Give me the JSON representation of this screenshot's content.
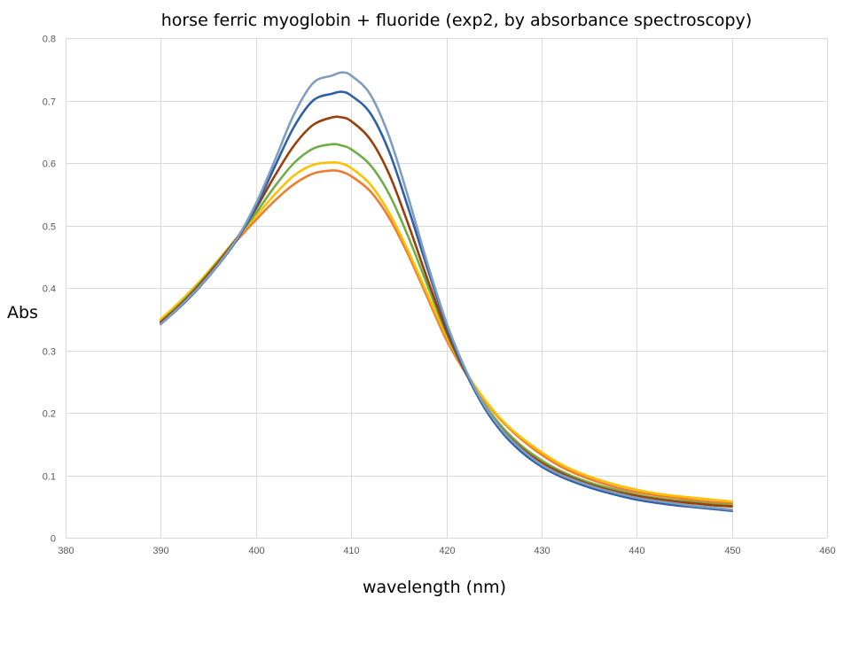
{
  "chart_data": {
    "type": "line",
    "title": "horse ferric myoglobin + fluoride (exp2, by absorbance spectroscopy)",
    "xlabel": "wavelength (nm)",
    "ylabel": "Abs",
    "xlim": [
      380,
      460
    ],
    "ylim": [
      0,
      0.8
    ],
    "x_ticks": [
      "380",
      "390",
      "400",
      "410",
      "420",
      "430",
      "440",
      "450",
      "460"
    ],
    "y_ticks": [
      "0",
      "0.1",
      "0.2",
      "0.3",
      "0.4",
      "0.5",
      "0.6",
      "0.7",
      "0.8"
    ],
    "grid": true,
    "legend": "none",
    "x": [
      390,
      392,
      394,
      396,
      398,
      400,
      402,
      404,
      406,
      408,
      409,
      410,
      412,
      414,
      416,
      418,
      420,
      422,
      424,
      426,
      428,
      430,
      432,
      434,
      436,
      438,
      440,
      442,
      444,
      446,
      448,
      450
    ],
    "series": [
      {
        "color": "#7f9ebe",
        "values": [
          0.342,
          0.37,
          0.401,
          0.437,
          0.479,
          0.535,
          0.605,
          0.678,
          0.728,
          0.74,
          0.745,
          0.74,
          0.71,
          0.642,
          0.545,
          0.44,
          0.345,
          0.27,
          0.212,
          0.17,
          0.14,
          0.117,
          0.101,
          0.089,
          0.079,
          0.071,
          0.064,
          0.059,
          0.055,
          0.051,
          0.048,
          0.045
        ]
      },
      {
        "color": "#2e5fa7",
        "values": [
          0.342,
          0.369,
          0.4,
          0.436,
          0.477,
          0.53,
          0.595,
          0.658,
          0.7,
          0.711,
          0.714,
          0.708,
          0.68,
          0.618,
          0.528,
          0.432,
          0.34,
          0.266,
          0.208,
          0.166,
          0.136,
          0.114,
          0.098,
          0.086,
          0.076,
          0.068,
          0.061,
          0.056,
          0.052,
          0.049,
          0.046,
          0.043
        ]
      },
      {
        "color": "#9c3d0a",
        "values": [
          0.345,
          0.372,
          0.404,
          0.44,
          0.48,
          0.527,
          0.58,
          0.628,
          0.661,
          0.673,
          0.673,
          0.667,
          0.638,
          0.582,
          0.502,
          0.415,
          0.332,
          0.265,
          0.211,
          0.171,
          0.142,
          0.12,
          0.104,
          0.091,
          0.081,
          0.073,
          0.067,
          0.062,
          0.058,
          0.055,
          0.052,
          0.05
        ]
      },
      {
        "color": "#70ad47",
        "values": [
          0.346,
          0.374,
          0.406,
          0.442,
          0.48,
          0.52,
          0.563,
          0.6,
          0.623,
          0.63,
          0.628,
          0.622,
          0.597,
          0.55,
          0.482,
          0.405,
          0.328,
          0.265,
          0.214,
          0.175,
          0.146,
          0.124,
          0.107,
          0.094,
          0.084,
          0.076,
          0.069,
          0.064,
          0.06,
          0.057,
          0.054,
          0.052
        ]
      },
      {
        "color": "#ffc000",
        "values": [
          0.35,
          0.378,
          0.409,
          0.444,
          0.48,
          0.515,
          0.55,
          0.58,
          0.597,
          0.601,
          0.599,
          0.592,
          0.566,
          0.52,
          0.459,
          0.391,
          0.323,
          0.267,
          0.222,
          0.186,
          0.159,
          0.137,
          0.118,
          0.104,
          0.093,
          0.084,
          0.077,
          0.071,
          0.067,
          0.064,
          0.061,
          0.058
        ]
      },
      {
        "color": "#ed7d31",
        "values": [
          0.347,
          0.375,
          0.406,
          0.441,
          0.476,
          0.509,
          0.54,
          0.566,
          0.583,
          0.588,
          0.586,
          0.579,
          0.555,
          0.512,
          0.453,
          0.385,
          0.317,
          0.264,
          0.22,
          0.184,
          0.156,
          0.133,
          0.114,
          0.1,
          0.089,
          0.08,
          0.073,
          0.068,
          0.064,
          0.06,
          0.057,
          0.055
        ]
      }
    ]
  }
}
